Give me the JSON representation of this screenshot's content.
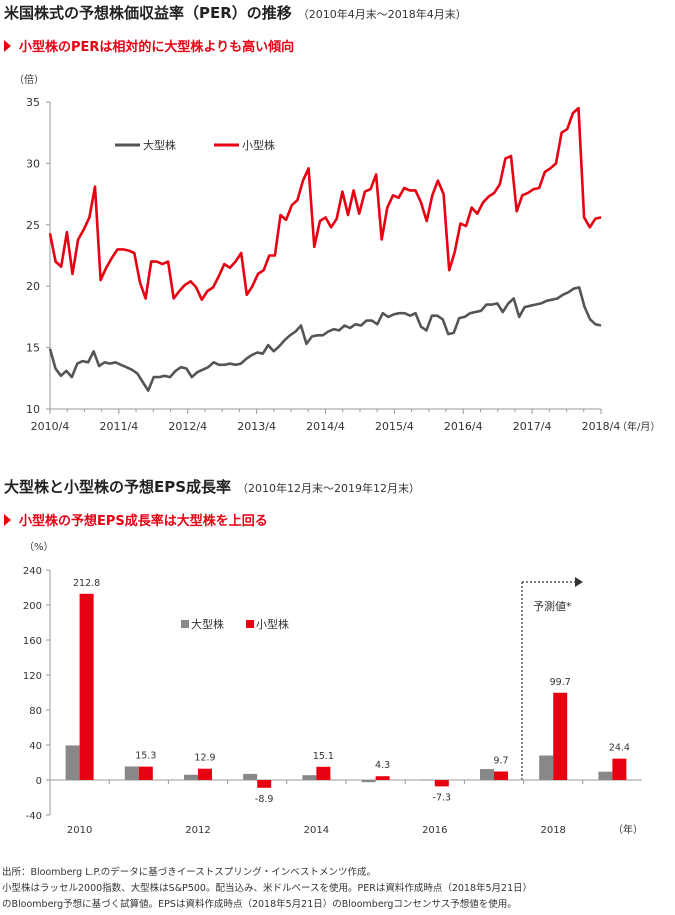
{
  "chart1": {
    "title": "米国株式の予想株価収益率（PER）の推移",
    "period": "（2010年4月末～2018年4月末）",
    "subtitle": "小型株のPERは相対的に大型株よりも高い傾向",
    "unit": "（倍）",
    "x_unit": "（年/月）",
    "legend": [
      "大型株",
      "小型株"
    ],
    "colors": {
      "large": "#555555",
      "small": "#e60012"
    }
  },
  "chart2": {
    "title": "大型株と小型株の予想EPS成長率",
    "period": "（2010年12月末～2019年12月末）",
    "subtitle": "小型株の予想EPS成長率は大型株を上回る",
    "unit": "（%）",
    "x_unit": "（年）",
    "legend": [
      "大型株",
      "小型株"
    ],
    "forecast_label": "予測値*",
    "colors": {
      "large": "#888888",
      "small": "#e60012"
    }
  },
  "chart_data": [
    {
      "type": "line",
      "title": "米国株式の予想株価収益率（PER）の推移",
      "ylabel": "（倍）",
      "xlabel": "（年/月）",
      "ylim": [
        10,
        35
      ],
      "yticks": [
        10,
        15,
        20,
        25,
        30,
        35
      ],
      "x_ticks": [
        "2010/4",
        "2011/4",
        "2012/4",
        "2013/4",
        "2014/4",
        "2015/4",
        "2016/4",
        "2017/4",
        "2018/4"
      ],
      "x_start": "2010/4",
      "x_end": "2018/4",
      "grid": false,
      "legend_position": "top-left",
      "series": [
        {
          "name": "大型株",
          "color": "#555555",
          "values": [
            14.9,
            13.3,
            12.7,
            13.1,
            12.6,
            13.7,
            13.9,
            13.8,
            14.7,
            13.5,
            13.8,
            13.7,
            13.8,
            13.6,
            13.4,
            13.2,
            12.9,
            12.2,
            11.5,
            12.6,
            12.6,
            12.7,
            12.6,
            13.1,
            13.4,
            13.3,
            12.6,
            13.0,
            13.2,
            13.4,
            13.8,
            13.6,
            13.6,
            13.7,
            13.6,
            13.7,
            14.1,
            14.4,
            14.6,
            14.5,
            15.2,
            14.7,
            15.1,
            15.6,
            16.0,
            16.3,
            16.8,
            15.3,
            15.9,
            16.0,
            16.0,
            16.3,
            16.5,
            16.4,
            16.8,
            16.6,
            16.9,
            16.8,
            17.2,
            17.2,
            16.9,
            17.8,
            17.5,
            17.7,
            17.8,
            17.8,
            17.6,
            17.8,
            16.7,
            16.4,
            17.6,
            17.6,
            17.3,
            16.1,
            16.2,
            17.4,
            17.5,
            17.8,
            17.9,
            18.0,
            18.5,
            18.5,
            18.6,
            17.9,
            18.6,
            19.0,
            17.5,
            18.3,
            18.4,
            18.5,
            18.6,
            18.8,
            18.9,
            19.0,
            19.3,
            19.5,
            19.8,
            19.9,
            18.3,
            17.3,
            16.9,
            16.8
          ]
        },
        {
          "name": "小型株",
          "color": "#e60012",
          "values": [
            24.3,
            22.0,
            21.6,
            24.4,
            21.0,
            23.8,
            24.6,
            25.6,
            28.1,
            20.5,
            21.5,
            22.3,
            23.0,
            23.0,
            22.9,
            22.7,
            20.3,
            19.0,
            22.0,
            22.0,
            21.8,
            22.0,
            19.0,
            19.6,
            20.1,
            20.4,
            19.9,
            18.9,
            19.6,
            19.9,
            20.8,
            21.8,
            21.5,
            22.0,
            22.7,
            19.3,
            20.0,
            21.0,
            21.3,
            22.5,
            22.5,
            25.8,
            25.4,
            26.6,
            27.0,
            28.6,
            29.6,
            23.2,
            25.3,
            25.6,
            24.8,
            25.5,
            27.7,
            25.8,
            27.8,
            25.9,
            27.7,
            27.9,
            29.1,
            23.8,
            26.4,
            27.4,
            27.2,
            28.0,
            27.8,
            27.8,
            26.8,
            25.3,
            27.4,
            28.6,
            27.5,
            21.3,
            22.8,
            25.1,
            24.9,
            26.4,
            25.9,
            26.8,
            27.3,
            27.6,
            28.3,
            30.4,
            30.6,
            26.1,
            27.4,
            27.6,
            27.9,
            28.0,
            29.3,
            29.6,
            30.0,
            32.5,
            32.8,
            34.1,
            34.5,
            25.6,
            24.8,
            25.5,
            25.6
          ]
        }
      ]
    },
    {
      "type": "bar",
      "title": "大型株と小型株の予想EPS成長率",
      "ylabel": "（%）",
      "xlabel": "（年）",
      "ylim": [
        -40,
        240
      ],
      "yticks": [
        -40,
        0,
        40,
        80,
        120,
        160,
        200,
        240
      ],
      "categories": [
        "2010",
        "2011",
        "2012",
        "2013",
        "2014",
        "2015",
        "2016",
        "2017",
        "2018",
        "2019"
      ],
      "category_labels": [
        "2010",
        "",
        "2012",
        "",
        "2014",
        "",
        "2016",
        "",
        "2018",
        ""
      ],
      "legend_position": "center",
      "forecast_categories": [
        "2018",
        "2019"
      ],
      "series": [
        {
          "name": "大型株",
          "color": "#888888",
          "values": [
            39.5,
            15.5,
            6.0,
            7.0,
            5.5,
            -2.5,
            0.5,
            12.5,
            28.0,
            9.5
          ]
        },
        {
          "name": "小型株",
          "color": "#e60012",
          "values": [
            212.8,
            15.3,
            12.9,
            -8.9,
            15.1,
            4.3,
            -7.3,
            9.7,
            99.7,
            24.4
          ]
        }
      ],
      "data_labels": [
        "212.8",
        "15.3",
        "12.9",
        "-8.9",
        "15.1",
        "4.3",
        "-7.3",
        "9.7",
        "99.7",
        "24.4"
      ]
    }
  ],
  "footnotes": [
    "出所：Bloomberg L.P.のデータに基づきイーストスプリング・インベストメンツ作成。",
    "小型株はラッセル2000指数、大型株はS&P500。配当込み、米ドルベースを使用。PERは資料作成時点（2018年5月21日）",
    "のBloomberg予想に基づく試算値。EPSは資料作成時点（2018年5月21日）のBloombergコンセンサス予想値を使用。"
  ]
}
